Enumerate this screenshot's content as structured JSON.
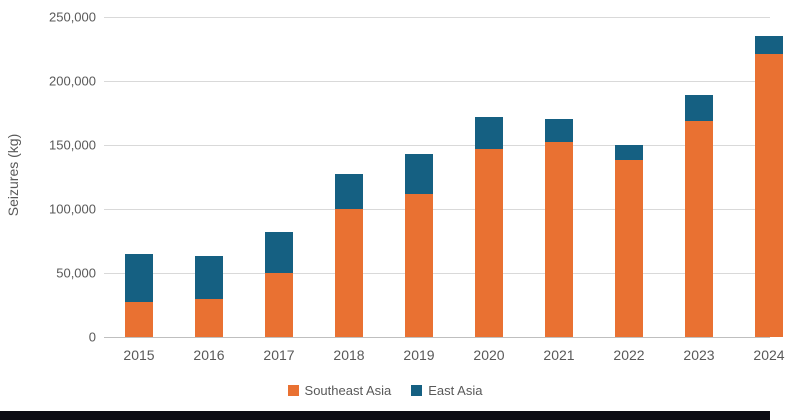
{
  "chart_data": {
    "type": "bar",
    "stacked": true,
    "title": "",
    "xlabel": "",
    "ylabel": "Seizures (kg)",
    "ylim": [
      0,
      250000
    ],
    "gridlines": true,
    "legend_position": "bottom",
    "yticks": [
      {
        "value": 0,
        "label": "0"
      },
      {
        "value": 50000,
        "label": "50,000"
      },
      {
        "value": 100000,
        "label": "100,000"
      },
      {
        "value": 150000,
        "label": "150,000"
      },
      {
        "value": 200000,
        "label": "200,000"
      },
      {
        "value": 250000,
        "label": "250,000"
      }
    ],
    "categories": [
      "2015",
      "2016",
      "2017",
      "2018",
      "2019",
      "2020",
      "2021",
      "2022",
      "2023",
      "2024"
    ],
    "series": [
      {
        "name": "Southeast Asia",
        "color": "#E97132",
        "values": [
          27000,
          30000,
          50000,
          100000,
          112000,
          147000,
          152000,
          138000,
          169000,
          221000
        ]
      },
      {
        "name": "East Asia",
        "color": "#156082",
        "values": [
          38000,
          33000,
          32000,
          27000,
          31000,
          25000,
          18000,
          12000,
          20000,
          14000
        ]
      }
    ]
  }
}
